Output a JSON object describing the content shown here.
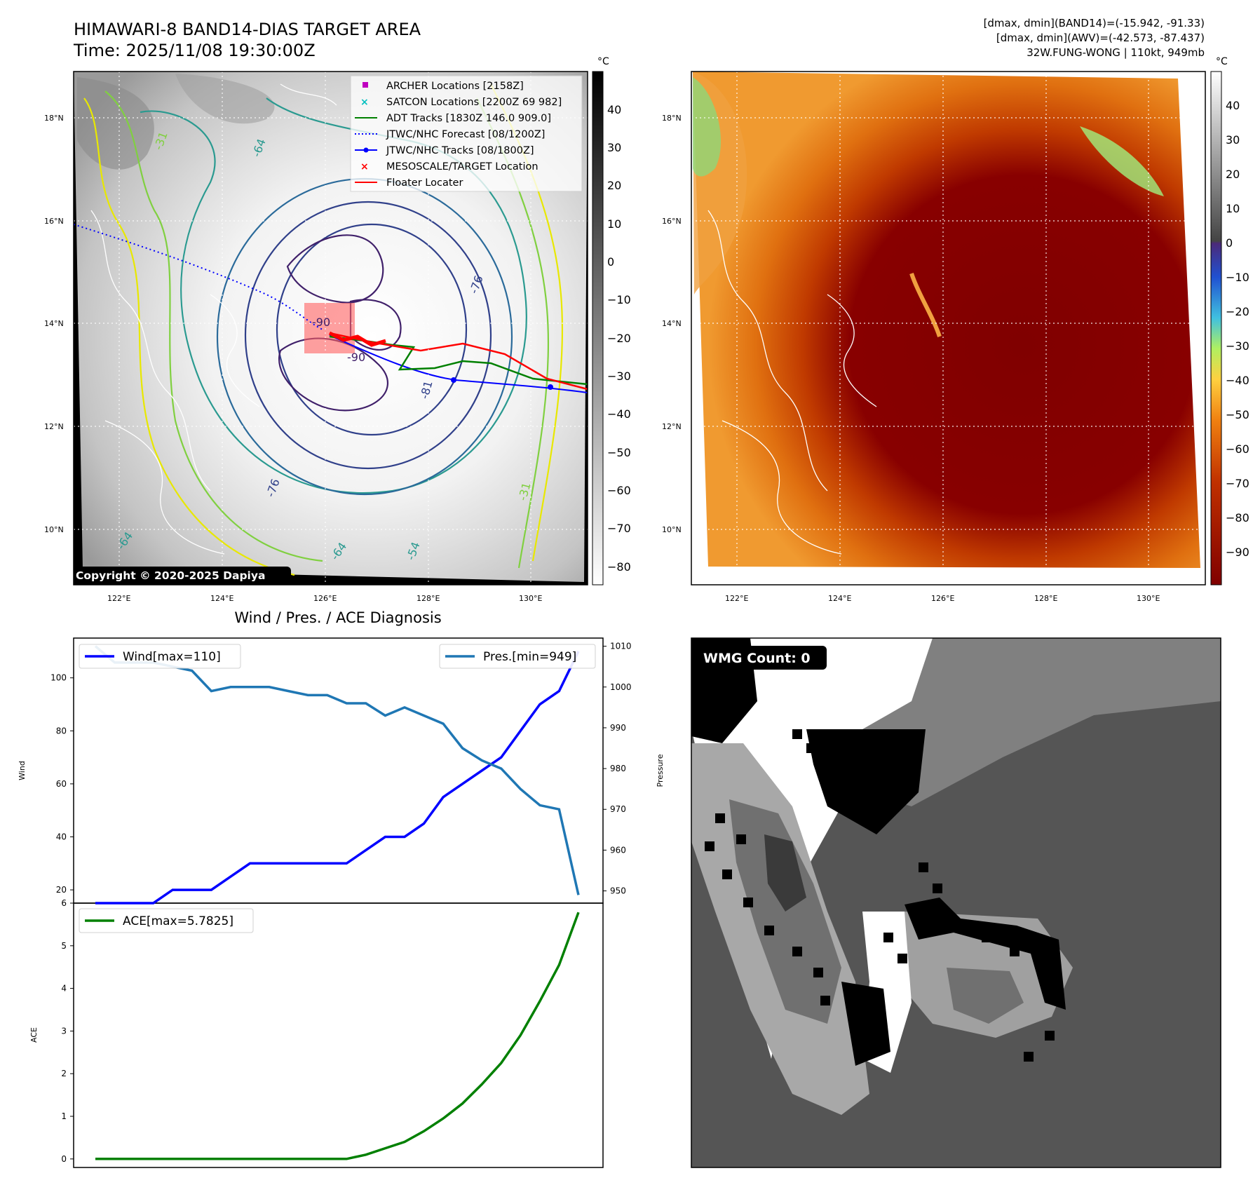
{
  "header": {
    "title_line1": "HIMAWARI-8 BAND14-DIAS TARGET AREA",
    "title_line2": "Time: 2025/11/08 19:30:00Z",
    "info_line1": "[dmax, dmin](BAND14)=(-15.942, -91.33)",
    "info_line2": "[dmax, dmin](AWV)=(-42.573, -87.437)",
    "info_line3": "32W.FUNG-WONG | 110kt, 949mb"
  },
  "map": {
    "lon_labels": [
      "122°E",
      "124°E",
      "126°E",
      "128°E",
      "130°E"
    ],
    "lat_labels": [
      "18°N",
      "16°N",
      "14°N",
      "12°N",
      "10°N"
    ],
    "colorbar_unit": "°C",
    "colorbar_ticks_left": [
      "40",
      "30",
      "20",
      "10",
      "0",
      "−10",
      "−20",
      "−30",
      "−40",
      "−50",
      "−60",
      "−70",
      "−80"
    ],
    "colorbar_ticks_right": [
      "40",
      "30",
      "20",
      "10",
      "0",
      "−10",
      "−20",
      "−30",
      "−40",
      "−50",
      "−60",
      "−70",
      "−80",
      "−90"
    ],
    "copyright": "Copyright © 2020-2025 Dapiya",
    "contour_labels": [
      "-64",
      "-31",
      "-76",
      "-90",
      "-64",
      "-54",
      "-31",
      "-81",
      "-76",
      "-64",
      "-90"
    ],
    "legend": [
      {
        "label": "ARCHER Locations [2158Z]",
        "color": "#c000c0",
        "marker": "square"
      },
      {
        "label": "SATCON Locations [2200Z 69 982]",
        "color": "#00bfbf",
        "marker": "x"
      },
      {
        "label": "ADT Tracks [1830Z 146.0 909.0]",
        "color": "#008000",
        "marker": "line"
      },
      {
        "label": "JTWC/NHC Forecast [08/1200Z]",
        "color": "#0000ff",
        "marker": "dotted"
      },
      {
        "label": "JTWC/NHC Tracks [08/1800Z]",
        "color": "#0000ff",
        "marker": "line-dot"
      },
      {
        "label": "MESOSCALE/TARGET Location",
        "color": "#ff0000",
        "marker": "x"
      },
      {
        "label": "Floater Locater",
        "color": "#ff0000",
        "marker": "line"
      }
    ]
  },
  "wmg": {
    "label": "WMG Count: 0"
  },
  "chart_data": [
    {
      "type": "line",
      "title": "Wind / Pres. / ACE Diagnosis",
      "ylabel": "Wind",
      "ylabel_right": "Pressure",
      "ylim": [
        15,
        115
      ],
      "ylim_right": [
        947,
        1012
      ],
      "yticks": [
        20,
        40,
        60,
        80,
        100
      ],
      "yticks_right": [
        950,
        960,
        970,
        980,
        990,
        1000,
        1010
      ],
      "series": [
        {
          "name": "Wind[max=110]",
          "color": "#0000ff",
          "values": [
            15,
            15,
            15,
            15,
            20,
            20,
            20,
            25,
            30,
            30,
            30,
            30,
            30,
            30,
            35,
            40,
            40,
            45,
            55,
            60,
            65,
            70,
            80,
            90,
            95,
            110
          ]
        },
        {
          "name": "Pres.[min=949]",
          "color": "#1f77b4",
          "values": [
            1010,
            1006,
            1006,
            1006,
            1005,
            1004,
            999,
            1000,
            1000,
            1000,
            999,
            998,
            998,
            996,
            996,
            993,
            995,
            993,
            991,
            985,
            982,
            980,
            975,
            971,
            970,
            949
          ]
        }
      ]
    },
    {
      "type": "line",
      "ylabel": "ACE",
      "ylim": [
        -0.2,
        6.0
      ],
      "yticks": [
        0,
        1,
        2,
        3,
        4,
        5,
        6
      ],
      "series": [
        {
          "name": "ACE[max=5.7825]",
          "color": "#008000",
          "values": [
            0,
            0,
            0,
            0,
            0,
            0,
            0,
            0,
            0,
            0,
            0,
            0,
            0,
            0,
            0.1,
            0.25,
            0.4,
            0.65,
            0.95,
            1.3,
            1.75,
            2.25,
            2.9,
            3.7,
            4.55,
            5.7825
          ]
        }
      ]
    }
  ]
}
